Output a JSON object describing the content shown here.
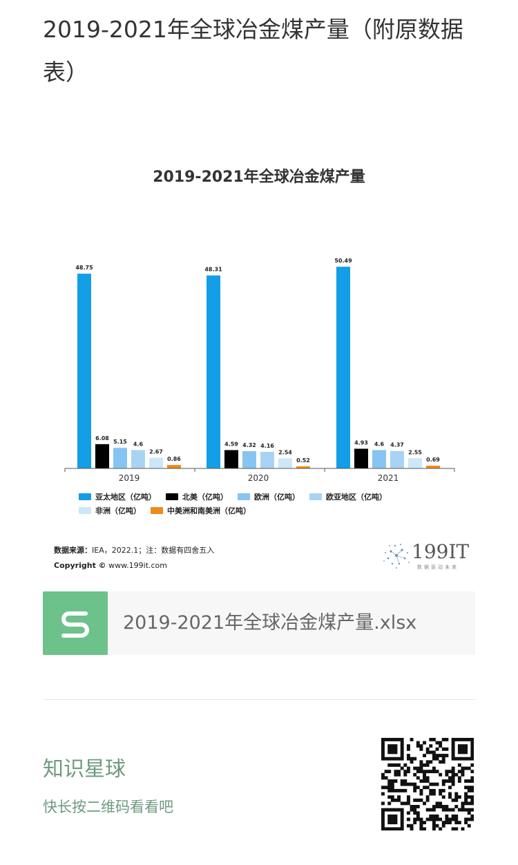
{
  "article": {
    "title": "2019-2021年全球冶金煤产量（附原数据表）"
  },
  "chart_data": {
    "type": "bar",
    "title": "2019-2021年全球冶金煤产量",
    "categories": [
      "2019",
      "2020",
      "2021"
    ],
    "series": [
      {
        "name": "亚太地区（亿吨）",
        "color": "#139ee6",
        "values": [
          48.75,
          48.31,
          50.49
        ]
      },
      {
        "name": "北美（亿吨）",
        "color": "#000000",
        "values": [
          6.08,
          4.59,
          4.93
        ]
      },
      {
        "name": "欧洲（亿吨）",
        "color": "#86c5f2",
        "values": [
          5.15,
          4.32,
          4.6
        ]
      },
      {
        "name": "欧亚地区（亿吨）",
        "color": "#a9d3f3",
        "values": [
          4.6,
          4.16,
          4.37
        ]
      },
      {
        "name": "非洲（亿吨）",
        "color": "#cde6f8",
        "values": [
          2.67,
          2.54,
          2.55
        ]
      },
      {
        "name": "中美洲和南美洲（亿吨）",
        "color": "#ee8a1c",
        "values": [
          0.86,
          0.52,
          0.69
        ]
      }
    ],
    "ylim": [
      0,
      55
    ],
    "grid": false,
    "legend_position": "bottom"
  },
  "source": {
    "label": "数据来源：",
    "text": "IEA，2022.1；注：数据有四舍五入",
    "copyright_label": "Copyright ©",
    "copyright_site": "www.199it.com"
  },
  "logo": {
    "text": "199IT",
    "tagline": "数据驱动未来"
  },
  "attachment": {
    "icon": "spreadsheet-icon",
    "filename": "2019-2021年全球冶金煤产量.xlsx"
  },
  "footer": {
    "planet_title": "知识星球",
    "planet_subtitle": "快长按二维码看看吧"
  }
}
